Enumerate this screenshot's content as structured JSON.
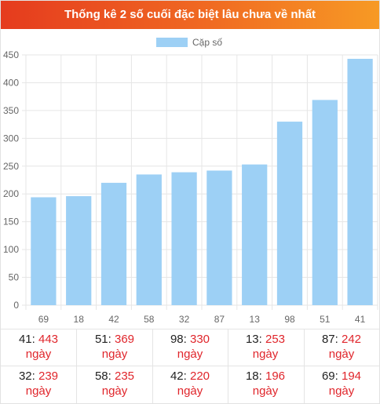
{
  "title": "Thống kê 2 số cuối đặc biệt lâu chưa về nhất",
  "chart_data": {
    "type": "bar",
    "categories": [
      "69",
      "18",
      "42",
      "58",
      "32",
      "87",
      "13",
      "98",
      "51",
      "41"
    ],
    "series": [
      {
        "name": "Cặp số",
        "values": [
          194,
          196,
          220,
          235,
          239,
          242,
          253,
          330,
          369,
          443
        ],
        "color": "#9dd0f5"
      }
    ],
    "ylim": [
      0,
      450
    ],
    "yticks": [
      "0",
      "50",
      "100",
      "150",
      "200",
      "250",
      "300",
      "350",
      "400",
      "450"
    ],
    "grid": true,
    "legend": "top-center"
  },
  "stats": {
    "unit": "ngày",
    "items": [
      {
        "num": "41",
        "value": "443"
      },
      {
        "num": "51",
        "value": "369"
      },
      {
        "num": "98",
        "value": "330"
      },
      {
        "num": "13",
        "value": "253"
      },
      {
        "num": "87",
        "value": "242"
      },
      {
        "num": "32",
        "value": "239"
      },
      {
        "num": "58",
        "value": "235"
      },
      {
        "num": "42",
        "value": "220"
      },
      {
        "num": "18",
        "value": "196"
      },
      {
        "num": "69",
        "value": "194"
      }
    ]
  }
}
